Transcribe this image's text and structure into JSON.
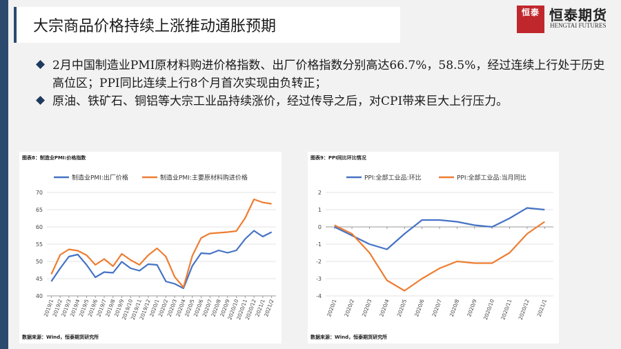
{
  "slide": {
    "title": "大宗商品价格持续上涨推动通胀预期",
    "brand_logo_chars": "恒泰",
    "brand_name": "恒泰期货",
    "brand_en": "HENGTAI FUTURES",
    "bullets": [
      "2月中国制造业PMI原材料购进价格指数、出厂价格指数分别高达66.7%，58.5%，经过连续上行处于历史高位区；PPI同比连续上行8个月首次实现由负转正；",
      "原油、铁矿石、铜铝等大宗工业品持续涨价，经过传导之后，对CPI带来巨大上行压力。"
    ]
  },
  "colors": {
    "blue": "#4472c4",
    "orange": "#ed7d31",
    "accent": "#2c4a6e",
    "logo_red": "#c0272d"
  },
  "left_caption": "图表8：制造业PMI:价格指数",
  "right_caption": "图表9：PPI同比环比情况",
  "left_source": "数据来源：Wind，恒泰期货研究所",
  "right_source": "数据来源：Wind，恒泰期货研究所",
  "chart_data": [
    {
      "type": "line",
      "x": [
        "2019/1",
        "2019/2",
        "2019/3",
        "2019/4",
        "2019/5",
        "2019/6",
        "2019/7",
        "2019/8",
        "2019/9",
        "2019/10",
        "2019/11",
        "2019/12",
        "2020/1",
        "2020/2",
        "2020/3",
        "2020/4",
        "2020/5",
        "2020/6",
        "2020/7",
        "2020/8",
        "2020/9",
        "2020/10",
        "2020/11",
        "2020/12",
        "2021/1",
        "2021/2"
      ],
      "series": [
        {
          "name": "制造业PMI:出厂价格",
          "color": "#4472c4",
          "values": [
            44.2,
            48.0,
            51.4,
            52.0,
            49.0,
            45.4,
            46.9,
            46.7,
            49.9,
            48.0,
            47.3,
            49.2,
            49.0,
            44.2,
            43.5,
            42.2,
            48.7,
            52.4,
            52.2,
            53.2,
            52.5,
            53.2,
            56.5,
            58.9,
            57.2,
            58.5
          ]
        },
        {
          "name": "制造业PMI:主要原材料购进价格",
          "color": "#ed7d31",
          "values": [
            46.3,
            51.9,
            53.5,
            53.1,
            51.8,
            49.0,
            50.7,
            48.6,
            52.2,
            50.4,
            49.0,
            51.8,
            53.8,
            51.4,
            45.5,
            42.5,
            51.6,
            56.8,
            58.1,
            58.3,
            58.5,
            58.8,
            62.6,
            68.0,
            67.1,
            66.7
          ]
        }
      ],
      "ylim": [
        40,
        70
      ],
      "yticks": [
        40,
        45,
        50,
        55,
        60,
        65,
        70
      ]
    },
    {
      "type": "line",
      "x": [
        "2020/1",
        "2020/2",
        "2020/3",
        "2020/4",
        "2020/5",
        "2020/6",
        "2020/7",
        "2020/8",
        "2020/9",
        "2020/10",
        "2020/11",
        "2020/12",
        "2021/1"
      ],
      "series": [
        {
          "name": "PPI:全部工业品:环比",
          "color": "#4472c4",
          "values": [
            0.0,
            -0.5,
            -1.0,
            -1.3,
            -0.4,
            0.4,
            0.4,
            0.3,
            0.1,
            0.0,
            0.5,
            1.1,
            1.0
          ]
        },
        {
          "name": "PPI:全部工业品:当月同比",
          "color": "#ed7d31",
          "values": [
            0.1,
            -0.4,
            -1.5,
            -3.1,
            -3.7,
            -3.0,
            -2.4,
            -2.0,
            -2.1,
            -2.1,
            -1.5,
            -0.4,
            0.3
          ]
        }
      ],
      "ylim": [
        -4,
        2
      ],
      "yticks": [
        -4,
        -3,
        -2,
        -1,
        0,
        1,
        2
      ]
    }
  ]
}
